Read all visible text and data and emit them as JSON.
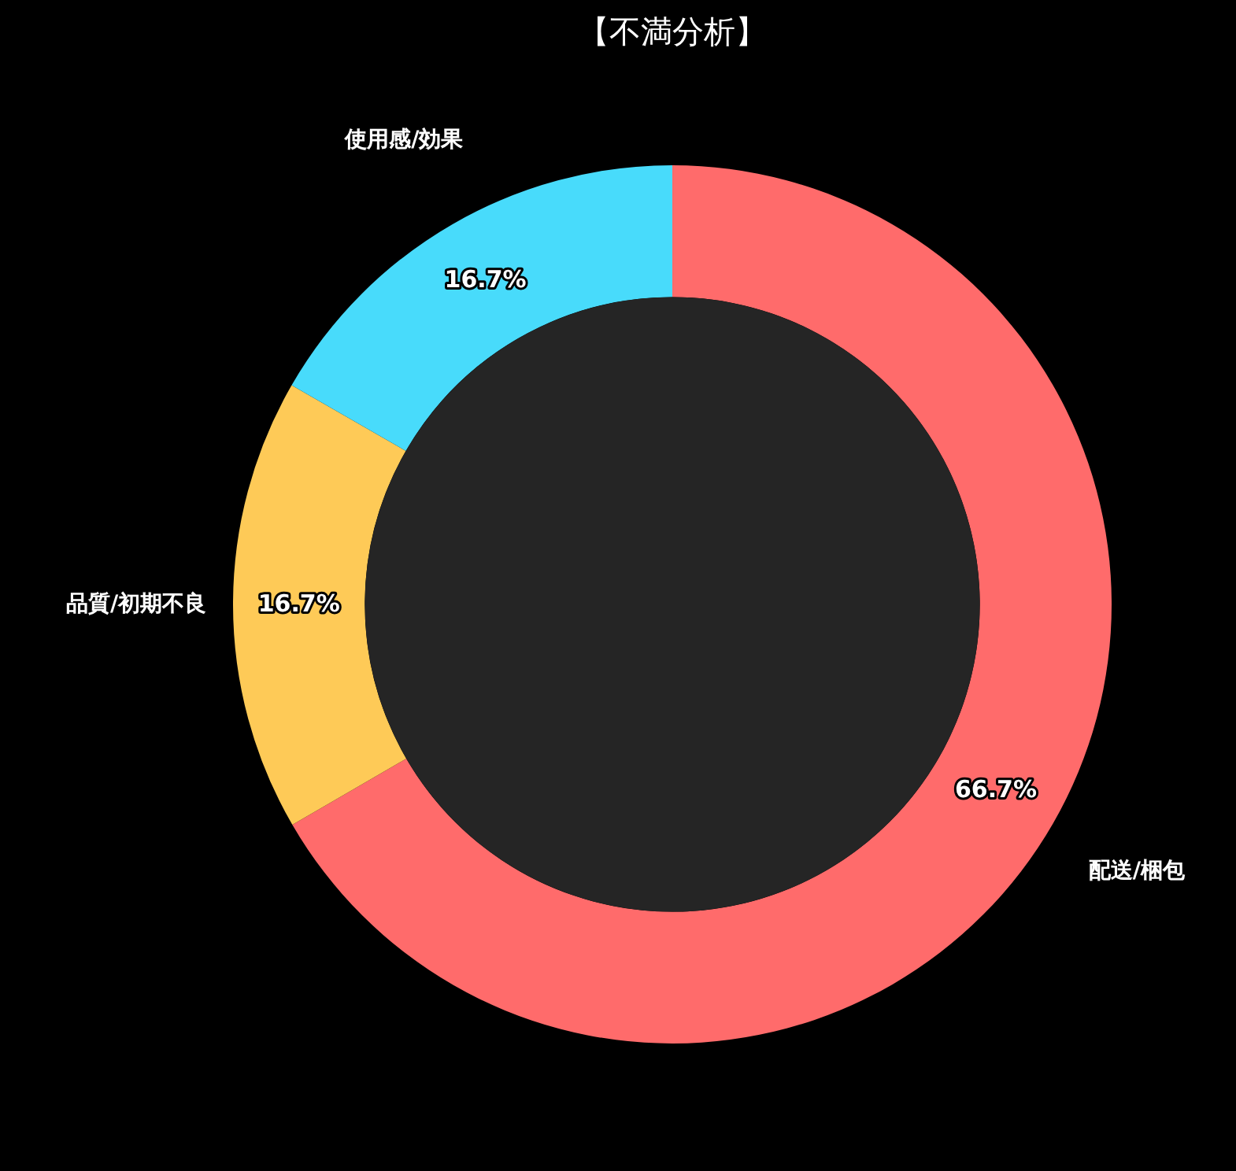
{
  "chart_data": {
    "type": "donut",
    "title": "【不満分析】",
    "categories": [
      "配送/梱包",
      "品質/初期不良",
      "使用感/効果"
    ],
    "values": [
      66.7,
      16.7,
      16.7
    ],
    "colors": [
      "#ff6b6b",
      "#feca57",
      "#48dbfb"
    ],
    "value_labels": [
      "66.7%",
      "16.7%",
      "16.7%"
    ],
    "legend": false
  }
}
